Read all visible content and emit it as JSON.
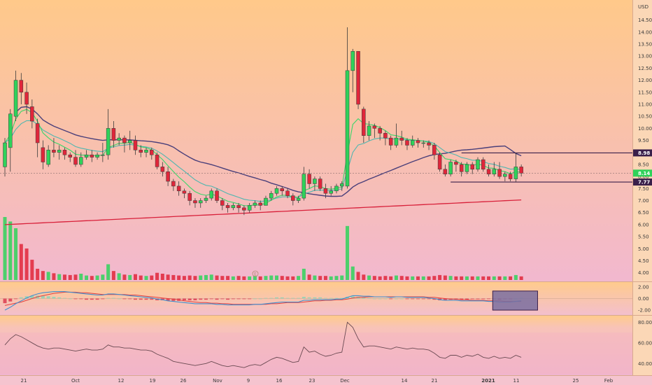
{
  "colors": {
    "bg_top": "#ffc98a",
    "bg_bottom": "#f2b8cf",
    "up": "#2fd25a",
    "down": "#e0263a",
    "ema_fast": "#3ad66a",
    "ema_mid": "#4fb7b0",
    "sma_slow": "#4a3f7a",
    "sma_long": "#d8203a",
    "macd_line": "#3f8fd0",
    "signal_line": "#e24040",
    "hist_pos": "#9ed0b4",
    "hist_neg": "#e05060",
    "rsi_line": "#6a4a52",
    "level": "#3a1f4a",
    "box_fill": "#7a6fa0",
    "box_stroke": "#3a1f4a"
  },
  "chart_data": [
    {
      "panel": "price",
      "type": "candlestick",
      "currency": "USD",
      "y_ticks": [
        "14.50",
        "14.00",
        "13.50",
        "13.00",
        "12.50",
        "12.00",
        "11.50",
        "11.00",
        "10.50",
        "10.00",
        "9.50",
        "9.00",
        "8.50",
        "8.00",
        "7.50",
        "7.00",
        "6.50",
        "6.00",
        "5.50",
        "5.00",
        "4.50",
        "4.00"
      ],
      "ylim": [
        3.7,
        15.1
      ],
      "x_ticks": [
        "21",
        "Oct",
        "12",
        "19",
        "26",
        "Nov",
        "9",
        "16",
        "23",
        "Dec",
        "14",
        "21",
        "2021",
        "11",
        "25",
        "Feb"
      ],
      "price_tags": [
        "8.98",
        "8.14",
        "7.77"
      ],
      "levels": [
        8.98,
        7.77
      ],
      "last_price": 8.14,
      "candles": [
        [
          8.4,
          9.4,
          9.6,
          8.0
        ],
        [
          9.2,
          10.6,
          10.8,
          8.2
        ],
        [
          10.5,
          12.0,
          12.4,
          10.3
        ],
        [
          12.0,
          11.5,
          12.3,
          11.0
        ],
        [
          11.5,
          11.0,
          11.9,
          10.6
        ],
        [
          10.9,
          10.3,
          11.2,
          10.0
        ],
        [
          10.2,
          9.4,
          10.4,
          8.8
        ],
        [
          9.2,
          8.6,
          9.5,
          8.3
        ],
        [
          8.5,
          9.1,
          9.3,
          8.4
        ],
        [
          9.1,
          9.0,
          9.6,
          8.8
        ],
        [
          9.0,
          9.1,
          9.3,
          8.7
        ],
        [
          9.1,
          8.9,
          9.2,
          8.7
        ],
        [
          8.9,
          8.8,
          9.0,
          8.6
        ],
        [
          8.8,
          8.5,
          9.1,
          8.4
        ],
        [
          8.5,
          8.8,
          9.0,
          8.4
        ],
        [
          8.8,
          8.9,
          9.1,
          8.7
        ],
        [
          8.9,
          8.8,
          9.1,
          8.6
        ],
        [
          8.8,
          8.9,
          9.0,
          8.7
        ],
        [
          8.9,
          8.9,
          9.4,
          8.6
        ],
        [
          8.9,
          10.0,
          10.8,
          8.7
        ],
        [
          10.0,
          9.5,
          10.3,
          9.2
        ],
        [
          9.5,
          9.6,
          9.8,
          9.3
        ],
        [
          9.6,
          9.4,
          9.7,
          9.0
        ],
        [
          9.4,
          9.5,
          9.9,
          9.1
        ],
        [
          9.5,
          9.1,
          9.7,
          8.9
        ],
        [
          9.1,
          9.0,
          9.3,
          8.8
        ],
        [
          9.0,
          9.1,
          9.2,
          8.8
        ],
        [
          9.1,
          8.9,
          9.2,
          8.7
        ],
        [
          8.9,
          8.4,
          9.0,
          8.3
        ],
        [
          8.4,
          8.2,
          8.6,
          8.0
        ],
        [
          8.2,
          7.8,
          8.4,
          7.6
        ],
        [
          7.8,
          7.6,
          7.9,
          7.4
        ],
        [
          7.6,
          7.4,
          7.8,
          7.2
        ],
        [
          7.4,
          7.3,
          7.5,
          7.1
        ],
        [
          7.3,
          7.0,
          7.4,
          6.8
        ],
        [
          7.0,
          6.9,
          7.1,
          6.7
        ],
        [
          6.9,
          7.0,
          7.1,
          6.7
        ],
        [
          7.0,
          7.1,
          7.2,
          6.9
        ],
        [
          7.1,
          7.4,
          7.5,
          7.0
        ],
        [
          7.4,
          7.0,
          7.5,
          6.9
        ],
        [
          7.0,
          6.8,
          7.1,
          6.6
        ],
        [
          6.8,
          6.7,
          6.9,
          6.5
        ],
        [
          6.7,
          6.8,
          6.9,
          6.6
        ],
        [
          6.8,
          6.7,
          6.9,
          6.5
        ],
        [
          6.7,
          6.6,
          6.8,
          6.4
        ],
        [
          6.6,
          6.8,
          6.9,
          6.5
        ],
        [
          6.8,
          6.9,
          7.0,
          6.7
        ],
        [
          6.9,
          6.8,
          7.0,
          6.6
        ],
        [
          6.8,
          7.1,
          7.2,
          6.8
        ],
        [
          7.1,
          7.3,
          7.4,
          7.0
        ],
        [
          7.3,
          7.5,
          7.6,
          7.2
        ],
        [
          7.5,
          7.4,
          7.6,
          7.2
        ],
        [
          7.4,
          7.2,
          7.5,
          7.1
        ],
        [
          7.2,
          7.0,
          7.3,
          6.8
        ],
        [
          7.0,
          7.1,
          7.2,
          6.9
        ],
        [
          7.1,
          8.1,
          8.4,
          7.0
        ],
        [
          8.1,
          7.7,
          8.3,
          7.5
        ],
        [
          7.7,
          7.9,
          8.0,
          7.4
        ],
        [
          7.9,
          7.5,
          8.0,
          7.4
        ],
        [
          7.5,
          7.3,
          7.7,
          7.1
        ],
        [
          7.3,
          7.4,
          7.6,
          7.2
        ],
        [
          7.4,
          7.6,
          7.7,
          7.3
        ],
        [
          7.6,
          7.7,
          7.8,
          7.4
        ],
        [
          7.6,
          12.4,
          14.2,
          7.5
        ],
        [
          12.4,
          13.2,
          13.3,
          11.5
        ],
        [
          13.2,
          11.0,
          13.2,
          10.8
        ],
        [
          10.8,
          9.7,
          10.9,
          9.4
        ],
        [
          9.7,
          10.1,
          10.3,
          9.5
        ],
        [
          10.1,
          10.0,
          10.2,
          9.6
        ],
        [
          10.0,
          9.8,
          10.1,
          9.5
        ],
        [
          9.8,
          9.6,
          9.9,
          9.3
        ],
        [
          9.6,
          9.3,
          9.7,
          9.1
        ],
        [
          9.3,
          9.6,
          10.2,
          9.2
        ],
        [
          9.6,
          9.5,
          9.9,
          9.3
        ],
        [
          9.5,
          9.3,
          9.6,
          9.1
        ],
        [
          9.3,
          9.5,
          9.7,
          9.2
        ],
        [
          9.5,
          9.4,
          9.6,
          9.2
        ],
        [
          9.4,
          9.4,
          9.5,
          9.2
        ],
        [
          9.4,
          9.3,
          9.5,
          9.1
        ],
        [
          9.3,
          8.9,
          9.4,
          8.7
        ],
        [
          8.9,
          8.3,
          9.0,
          8.2
        ],
        [
          8.3,
          8.1,
          8.5,
          8.0
        ],
        [
          8.1,
          8.6,
          8.7,
          8.0
        ],
        [
          8.6,
          8.5,
          8.7,
          8.2
        ],
        [
          8.5,
          8.2,
          8.6,
          8.0
        ],
        [
          8.2,
          8.5,
          8.6,
          8.1
        ],
        [
          8.5,
          8.3,
          8.6,
          8.1
        ],
        [
          8.3,
          8.7,
          8.8,
          8.2
        ],
        [
          8.7,
          8.3,
          8.8,
          8.2
        ],
        [
          8.3,
          8.1,
          8.5,
          8.0
        ],
        [
          8.1,
          8.3,
          8.6,
          8.0
        ],
        [
          8.3,
          8.0,
          8.6,
          7.9
        ],
        [
          8.0,
          8.1,
          8.2,
          7.8
        ],
        [
          8.1,
          7.9,
          8.2,
          7.8
        ],
        [
          7.9,
          8.4,
          8.98,
          7.77
        ],
        [
          8.4,
          8.14,
          8.5,
          8.0
        ]
      ],
      "volume": [
        14.0,
        13.0,
        11.5,
        8.0,
        7.0,
        4.5,
        2.5,
        2.0,
        1.8,
        1.5,
        1.3,
        1.2,
        1.1,
        1.2,
        1.4,
        1.0,
        0.9,
        1.0,
        1.2,
        3.5,
        2.0,
        1.5,
        1.2,
        1.1,
        1.3,
        1.0,
        0.9,
        1.0,
        1.6,
        1.4,
        1.2,
        1.1,
        1.0,
        0.9,
        1.0,
        0.9,
        1.0,
        1.1,
        1.2,
        1.0,
        0.9,
        0.9,
        0.8,
        0.9,
        0.8,
        0.8,
        0.9,
        0.8,
        0.9,
        1.0,
        1.0,
        0.9,
        0.8,
        0.8,
        0.9,
        2.5,
        1.2,
        1.0,
        0.9,
        0.9,
        0.8,
        0.9,
        1.0,
        12.0,
        3.0,
        1.8,
        1.2,
        1.0,
        0.9,
        0.8,
        0.9,
        0.8,
        1.0,
        0.9,
        0.8,
        0.8,
        0.8,
        0.8,
        0.8,
        0.9,
        1.1,
        1.0,
        0.9,
        0.8,
        0.8,
        0.8,
        0.8,
        0.8,
        0.8,
        0.8,
        0.8,
        0.8,
        0.8,
        0.8,
        1.1,
        0.8
      ],
      "volume_max": 14.0
    },
    {
      "panel": "macd",
      "type": "line",
      "y_ticks": [
        "2.00",
        "0.00",
        "-2.00"
      ],
      "ylim": [
        -2.6,
        2.6
      ],
      "macd": [
        -2.0,
        -1.5,
        -0.9,
        -0.4,
        0.1,
        0.5,
        0.8,
        1.0,
        1.1,
        1.2,
        1.2,
        1.2,
        1.1,
        1.0,
        0.9,
        0.8,
        0.7,
        0.6,
        0.6,
        0.8,
        0.8,
        0.7,
        0.6,
        0.5,
        0.4,
        0.3,
        0.2,
        0.1,
        -0.1,
        -0.2,
        -0.4,
        -0.5,
        -0.6,
        -0.7,
        -0.8,
        -0.9,
        -0.9,
        -0.9,
        -0.9,
        -1.0,
        -1.0,
        -1.1,
        -1.1,
        -1.1,
        -1.1,
        -1.1,
        -1.0,
        -1.0,
        -0.9,
        -0.8,
        -0.7,
        -0.6,
        -0.6,
        -0.6,
        -0.6,
        -0.3,
        -0.3,
        -0.2,
        -0.2,
        -0.2,
        -0.2,
        -0.1,
        -0.1,
        0.2,
        0.5,
        0.5,
        0.4,
        0.4,
        0.3,
        0.3,
        0.3,
        0.2,
        0.3,
        0.3,
        0.2,
        0.2,
        0.2,
        0.2,
        0.1,
        0.0,
        -0.2,
        -0.3,
        -0.3,
        -0.3,
        -0.4,
        -0.4,
        -0.4,
        -0.4,
        -0.4,
        -0.5,
        -0.5,
        -0.6,
        -0.6,
        -0.6,
        -0.5,
        -0.4
      ],
      "signal": [
        -1.2,
        -1.0,
        -0.8,
        -0.6,
        -0.3,
        0.0,
        0.3,
        0.5,
        0.7,
        0.9,
        1.0,
        1.1,
        1.1,
        1.1,
        1.0,
        1.0,
        0.9,
        0.8,
        0.7,
        0.7,
        0.7,
        0.7,
        0.7,
        0.6,
        0.6,
        0.5,
        0.4,
        0.3,
        0.2,
        0.1,
        0.0,
        -0.1,
        -0.2,
        -0.4,
        -0.5,
        -0.6,
        -0.7,
        -0.7,
        -0.8,
        -0.8,
        -0.9,
        -0.9,
        -1.0,
        -1.0,
        -1.0,
        -1.0,
        -1.0,
        -1.0,
        -1.0,
        -0.9,
        -0.9,
        -0.8,
        -0.7,
        -0.7,
        -0.7,
        -0.6,
        -0.5,
        -0.4,
        -0.4,
        -0.3,
        -0.3,
        -0.2,
        -0.2,
        -0.1,
        0.1,
        0.2,
        0.2,
        0.3,
        0.3,
        0.3,
        0.3,
        0.3,
        0.3,
        0.3,
        0.3,
        0.3,
        0.3,
        0.3,
        0.2,
        0.2,
        0.1,
        0.0,
        -0.1,
        -0.1,
        -0.2,
        -0.2,
        -0.3,
        -0.3,
        -0.3,
        -0.4,
        -0.4,
        -0.4,
        -0.5,
        -0.5,
        -0.5,
        -0.5
      ],
      "highlight_box": [
        90,
        98,
        -2.0,
        1.3
      ]
    },
    {
      "panel": "rsi",
      "type": "line",
      "y_ticks": [
        "80.00",
        "60.00",
        "40.00"
      ],
      "ylim": [
        30,
        85
      ],
      "band": [
        30,
        70
      ],
      "rsi": [
        58,
        64,
        68,
        66,
        63,
        60,
        57,
        55,
        54,
        55,
        55,
        54,
        53,
        52,
        53,
        54,
        53,
        53,
        54,
        58,
        56,
        56,
        55,
        55,
        54,
        53,
        53,
        52,
        49,
        47,
        45,
        42,
        41,
        40,
        39,
        38,
        39,
        40,
        42,
        40,
        38,
        37,
        38,
        37,
        36,
        38,
        39,
        38,
        41,
        44,
        46,
        45,
        43,
        41,
        42,
        56,
        51,
        52,
        49,
        47,
        48,
        50,
        51,
        80,
        75,
        64,
        56,
        57,
        57,
        56,
        55,
        54,
        56,
        55,
        54,
        55,
        54,
        54,
        53,
        50,
        46,
        45,
        48,
        48,
        46,
        48,
        47,
        49,
        46,
        45,
        47,
        45,
        46,
        45,
        48,
        46
      ]
    }
  ]
}
